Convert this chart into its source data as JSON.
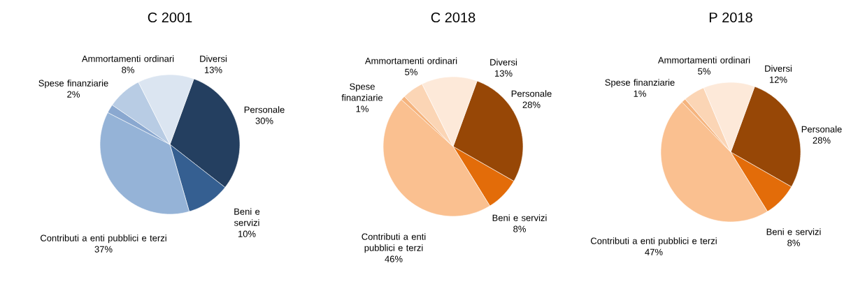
{
  "chart_data": [
    {
      "type": "pie",
      "title": "C 2001",
      "categories": [
        "Personale",
        "Beni e servizi",
        "Contributi a enti pubblici e terzi",
        "Spese finanziarie",
        "Ammortamenti ordinari",
        "Diversi"
      ],
      "values": [
        30,
        10,
        37,
        2,
        8,
        13
      ],
      "value_labels": [
        "30%",
        "10%",
        "37%",
        "2%",
        "8%",
        "13%"
      ],
      "colors": [
        "#243f60",
        "#355f91",
        "#95b3d7",
        "#8aa8d0",
        "#b8cce4",
        "#dbe5f1"
      ]
    },
    {
      "type": "pie",
      "title": "C 2018",
      "categories": [
        "Personale",
        "Beni e servizi",
        "Contributi a enti pubblici e terzi",
        "Spese finanziarie",
        "Ammortamenti ordinari",
        "Diversi"
      ],
      "values": [
        28,
        8,
        46,
        1,
        5,
        13
      ],
      "value_labels": [
        "28%",
        "8%",
        "46%",
        "1%",
        "5%",
        "13%"
      ],
      "colors": [
        "#974706",
        "#e36c09",
        "#fac090",
        "#f5b47e",
        "#fbd5b5",
        "#fde9d9"
      ]
    },
    {
      "type": "pie",
      "title": "P 2018",
      "categories": [
        "Personale",
        "Beni e servizi",
        "Contributi a enti pubblici e terzi",
        "Spese finanziarie",
        "Ammortamenti ordinari",
        "Diversi"
      ],
      "values": [
        28,
        8,
        47,
        1,
        5,
        12
      ],
      "value_labels": [
        "28%",
        "8%",
        "47%",
        "1%",
        "5%",
        "12%"
      ],
      "colors": [
        "#974706",
        "#e36c09",
        "#fac090",
        "#f5b47e",
        "#fbd5b5",
        "#fde9d9"
      ]
    }
  ]
}
